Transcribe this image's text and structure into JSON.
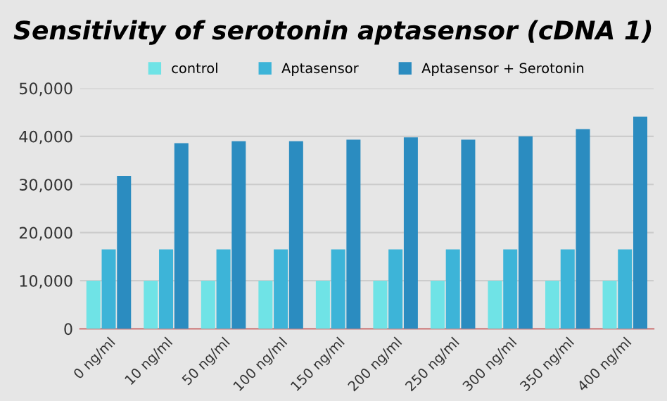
{
  "chart_data": {
    "type": "bar",
    "title": "Sensitivity of serotonin aptasensor (cDNA 1)",
    "categories": [
      "0 ng/ml",
      "10 ng/ml",
      "50 ng/ml",
      "100 ng/ml",
      "150 ng/ml",
      "200 ng/ml",
      "250 ng/ml",
      "300 ng/ml",
      "350 ng/ml",
      "400 ng/ml"
    ],
    "series": [
      {
        "name": "control",
        "color": "#6fe3e6",
        "values": [
          10000,
          10000,
          10000,
          10000,
          10000,
          10000,
          10000,
          10000,
          10000,
          10000
        ]
      },
      {
        "name": "Aptasensor",
        "color": "#3db4d8",
        "values": [
          16500,
          16500,
          16500,
          16500,
          16500,
          16500,
          16500,
          16500,
          16500,
          16500
        ]
      },
      {
        "name": "Aptasensor + Serotonin",
        "color": "#2b8cc0",
        "values": [
          31800,
          38600,
          39000,
          39000,
          39300,
          39800,
          39300,
          40000,
          41500,
          44100
        ]
      }
    ],
    "ylim": [
      0,
      50000
    ],
    "yticks": [
      {
        "value": 0,
        "label": "0"
      },
      {
        "value": 10000,
        "label": "10,000"
      },
      {
        "value": 20000,
        "label": "20,000"
      },
      {
        "value": 30000,
        "label": "30,000"
      },
      {
        "value": 40000,
        "label": "40,000"
      },
      {
        "value": 50000,
        "label": "50,000"
      }
    ],
    "grid": "y",
    "legend": "top"
  }
}
